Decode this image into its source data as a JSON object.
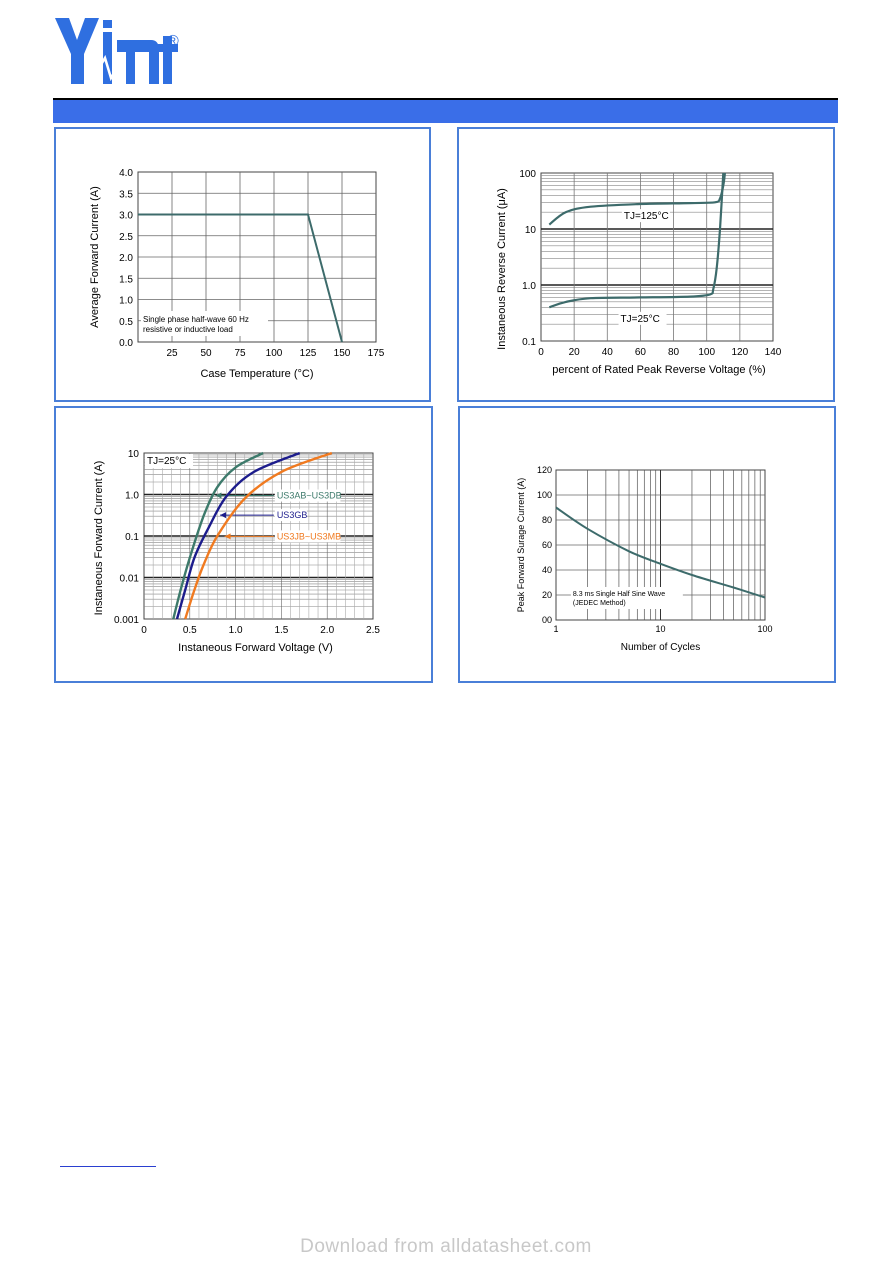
{
  "brand": {
    "logo_text": "Yint",
    "registered_mark": "®",
    "accent": "#3a6ee8",
    "panel_border": "#4a7fd8"
  },
  "watermark": "Download from alldatasheet.com",
  "chart_data": [
    {
      "type": "line",
      "xlabel": "Case Temperature (°C)",
      "ylabel": "Average Forward Current  (A)",
      "xlim": [
        0,
        175
      ],
      "ylim": [
        0,
        4.0
      ],
      "xticks": [
        "25",
        "50",
        "75",
        "100",
        "125",
        "150",
        "175"
      ],
      "yticks": [
        "0.0",
        "0.5",
        "1.0",
        "1.5",
        "2.0",
        "2.5",
        "3.0",
        "3.5",
        "4.0"
      ],
      "annotation": [
        "Single phase half-wave 60 Hz",
        "resistive or inductive load"
      ],
      "series": [
        {
          "x": [
            0,
            125,
            150
          ],
          "y": [
            3.0,
            3.0,
            0.0
          ],
          "color": "#3d6b6b"
        }
      ],
      "grid": true
    },
    {
      "type": "line",
      "xlabel": "percent of Rated  Peak Reverse Voltage (%)",
      "ylabel": "Instaneous Reverse Current (μA)",
      "xlim": [
        0,
        140
      ],
      "ylim": [
        0.1,
        100
      ],
      "yscale": "log",
      "xticks": [
        "0",
        "20",
        "40",
        "60",
        "80",
        "100",
        "120",
        "140"
      ],
      "yticks": [
        "0.1",
        "1.0",
        "10",
        "100"
      ],
      "series": [
        {
          "name": "TJ=125°C",
          "x": [
            5,
            15,
            30,
            60,
            90,
            105,
            108,
            110,
            111
          ],
          "y": [
            12,
            20,
            25,
            28,
            29,
            30,
            35,
            60,
            100
          ],
          "color": "#3d6b6b"
        },
        {
          "name": "TJ=25°C",
          "x": [
            5,
            15,
            30,
            60,
            90,
            102,
            104,
            106,
            108,
            110
          ],
          "y": [
            0.4,
            0.5,
            0.58,
            0.6,
            0.62,
            0.68,
            0.85,
            2,
            10,
            100
          ],
          "color": "#3d6b6b"
        }
      ],
      "grid": true
    },
    {
      "type": "line",
      "xlabel": "Instaneous Forward Voltage (V)",
      "ylabel": "Instaneous Forward Current (A)",
      "xlim": [
        0,
        2.5
      ],
      "ylim": [
        0.001,
        10
      ],
      "yscale": "log",
      "xticks": [
        "0",
        "0.5",
        "1.0",
        "1.5",
        "2.0",
        "2.5"
      ],
      "yticks": [
        "0.001",
        "0.01",
        "0.1",
        "1.0",
        "10"
      ],
      "annotation": "TJ=25°C",
      "series": [
        {
          "name": "US3AB~US3DB",
          "x": [
            0.32,
            0.4,
            0.5,
            0.65,
            0.8,
            1.0,
            1.3
          ],
          "y": [
            0.001,
            0.005,
            0.03,
            0.3,
            1.5,
            4.5,
            10
          ],
          "color": "#3d7a6b"
        },
        {
          "name": "US3GB",
          "x": [
            0.36,
            0.45,
            0.55,
            0.7,
            0.9,
            1.2,
            1.7
          ],
          "y": [
            0.001,
            0.005,
            0.03,
            0.15,
            0.9,
            3.5,
            10
          ],
          "color": "#1c1c8c"
        },
        {
          "name": "US3JB~US3MB",
          "x": [
            0.45,
            0.55,
            0.65,
            0.8,
            1.1,
            1.5,
            2.05
          ],
          "y": [
            0.001,
            0.005,
            0.02,
            0.1,
            0.8,
            3.5,
            10
          ],
          "color": "#f07a20"
        }
      ],
      "grid": true
    },
    {
      "type": "line",
      "xlabel": "Number of Cycles",
      "ylabel": "Peak Forward Surage Current (A)",
      "xlim": [
        1,
        100
      ],
      "ylim": [
        0,
        120
      ],
      "xscale": "log",
      "xticks": [
        "1",
        "10",
        "100"
      ],
      "yticks": [
        "00",
        "20",
        "40",
        "60",
        "80",
        "100",
        "120"
      ],
      "annotation": [
        "8.3 ms Single Half Sine Wave",
        "(JEDEC Method)"
      ],
      "series": [
        {
          "x": [
            1,
            2,
            5,
            10,
            20,
            50,
            100
          ],
          "y": [
            90,
            73,
            55,
            45,
            36,
            26,
            18
          ],
          "color": "#3d6b6b"
        }
      ],
      "grid": true
    }
  ]
}
